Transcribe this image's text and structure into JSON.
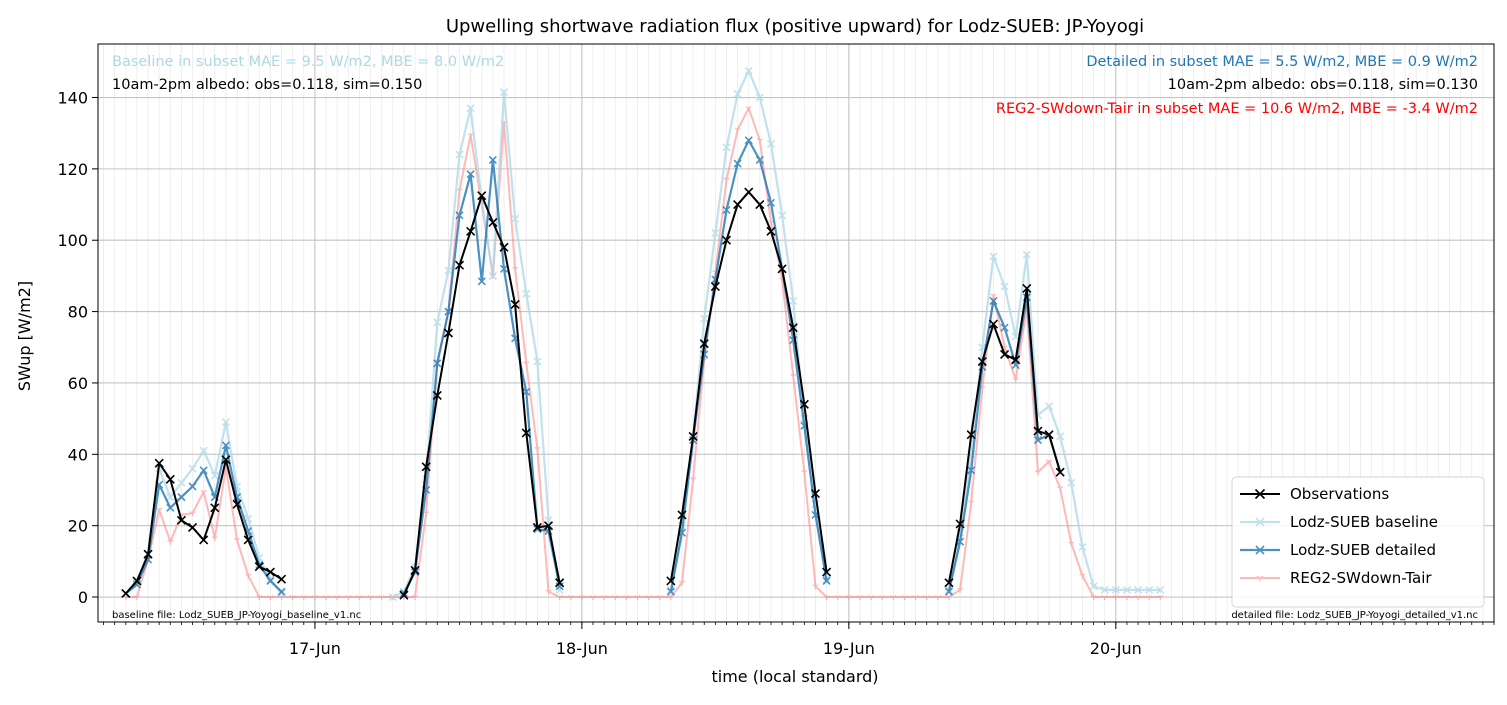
{
  "chart_data": {
    "type": "line",
    "title": "Upwelling shortwave radiation flux (positive upward) for Lodz-SUEB: JP-Yoyogi",
    "xlabel": "time (local standard)",
    "ylabel": "SWup [W/m2]",
    "ylim": [
      -7,
      155
    ],
    "xlim_hours": [
      -19.5,
      106
    ],
    "x_unit": "hours relative to 17-Jun 00:00 (local standard)",
    "x_ticks": [
      {
        "hour": 0,
        "label": "17-Jun"
      },
      {
        "hour": 24,
        "label": "18-Jun"
      },
      {
        "hour": 48,
        "label": "19-Jun"
      },
      {
        "hour": 72,
        "label": "20-Jun"
      }
    ],
    "y_ticks": [
      0,
      20,
      40,
      60,
      80,
      100,
      120,
      140
    ],
    "grid": true,
    "legend_position": "bottom-right",
    "annotations": {
      "baseline_metrics": "Baseline in subset MAE = 9.5 W/m2, MBE = 8.0 W/m2",
      "baseline_albedo": "10am-2pm albedo: obs=0.118, sim=0.150",
      "detailed_metrics": "Detailed in subset MAE = 5.5 W/m2, MBE = 0.9 W/m2",
      "detailed_albedo": "10am-2pm albedo: obs=0.118, sim=0.130",
      "reg2_metrics": "REG2-SWdown-Tair in subset MAE = 10.6 W/m2, MBE = -3.4 W/m2",
      "baseline_file": "baseline file: Lodz_SUEB_JP-Yoyogi_baseline_v1.nc",
      "detailed_file": "detailed file: Lodz_SUEB_JP-Yoyogi_detailed_v1.nc"
    },
    "series": [
      {
        "name": "Observations",
        "color": "#000000",
        "marker": "x",
        "points": [
          [
            -17,
            1
          ],
          [
            -16,
            4.5
          ],
          [
            -15,
            12
          ],
          [
            -14,
            37.5
          ],
          [
            -13,
            33
          ],
          [
            -12,
            21.5
          ],
          [
            -11,
            19.5
          ],
          [
            -10,
            16
          ],
          [
            -9,
            25
          ],
          [
            -8,
            38.5
          ],
          [
            -7,
            26
          ],
          [
            -6,
            16
          ],
          [
            -5,
            8.5
          ],
          [
            -4,
            7
          ],
          [
            -3,
            5
          ],
          [
            8,
            0.5
          ],
          [
            9,
            7.5
          ],
          [
            10,
            36.5
          ],
          [
            11,
            56.5
          ],
          [
            12,
            74
          ],
          [
            13,
            93
          ],
          [
            14,
            102.5
          ],
          [
            15,
            112.5
          ],
          [
            16,
            105
          ],
          [
            17,
            98
          ],
          [
            18,
            82
          ],
          [
            19,
            46
          ],
          [
            20,
            19.5
          ],
          [
            21,
            20
          ],
          [
            22,
            4
          ],
          [
            32,
            4.5
          ],
          [
            33,
            23
          ],
          [
            34,
            45
          ],
          [
            35,
            71
          ],
          [
            36,
            87
          ],
          [
            37,
            100
          ],
          [
            38,
            110
          ],
          [
            39,
            113.5
          ],
          [
            40,
            110
          ],
          [
            41,
            102.5
          ],
          [
            42,
            92
          ],
          [
            43,
            75.5
          ],
          [
            44,
            54
          ],
          [
            45,
            29
          ],
          [
            46,
            7
          ],
          [
            57,
            4
          ],
          [
            58,
            20.5
          ],
          [
            59,
            45.5
          ],
          [
            60,
            66
          ],
          [
            61,
            76.5
          ],
          [
            62,
            68
          ],
          [
            63,
            66.5
          ],
          [
            64,
            86.5
          ],
          [
            65,
            46.5
          ],
          [
            66,
            45.5
          ],
          [
            67,
            35
          ]
        ]
      },
      {
        "name": "Lodz-SUEB baseline",
        "color": "#add8e6",
        "marker": "x",
        "points": [
          [
            -17,
            1
          ],
          [
            -16,
            4
          ],
          [
            -15,
            12
          ],
          [
            -14,
            36
          ],
          [
            -13,
            28
          ],
          [
            -12,
            32
          ],
          [
            -11,
            36
          ],
          [
            -10,
            41
          ],
          [
            -9,
            34
          ],
          [
            -8,
            49
          ],
          [
            -7,
            31
          ],
          [
            -6,
            22
          ],
          [
            -5,
            11
          ],
          [
            -4,
            5
          ],
          [
            -3,
            1
          ],
          [
            7,
            0
          ],
          [
            8,
            1.5
          ],
          [
            9,
            8.5
          ],
          [
            10,
            33
          ],
          [
            11,
            77
          ],
          [
            12,
            91.5
          ],
          [
            13,
            124
          ],
          [
            14,
            137
          ],
          [
            15,
            111
          ],
          [
            16,
            90
          ],
          [
            17,
            141.5
          ],
          [
            18,
            106
          ],
          [
            19,
            85
          ],
          [
            20,
            66
          ],
          [
            21,
            21.5
          ],
          [
            22,
            2
          ],
          [
            32,
            2
          ],
          [
            33,
            20
          ],
          [
            34,
            45
          ],
          [
            35,
            78
          ],
          [
            36,
            102
          ],
          [
            37,
            126
          ],
          [
            38,
            141
          ],
          [
            39,
            147.5
          ],
          [
            40,
            140
          ],
          [
            41,
            127
          ],
          [
            42,
            107
          ],
          [
            43,
            83
          ],
          [
            44,
            50
          ],
          [
            45,
            26
          ],
          [
            46,
            5
          ],
          [
            57,
            2
          ],
          [
            58,
            18
          ],
          [
            59,
            40
          ],
          [
            60,
            70
          ],
          [
            61,
            95.5
          ],
          [
            62,
            87
          ],
          [
            63,
            73
          ],
          [
            64,
            96
          ],
          [
            65,
            51
          ],
          [
            66,
            53.5
          ],
          [
            67,
            45
          ],
          [
            68,
            32
          ],
          [
            69,
            14
          ],
          [
            70,
            3
          ],
          [
            71,
            2
          ],
          [
            72,
            2
          ],
          [
            73,
            2
          ],
          [
            74,
            2
          ],
          [
            75,
            2
          ],
          [
            76,
            2
          ]
        ]
      },
      {
        "name": "Lodz-SUEB detailed",
        "color": "#1f77b4",
        "marker": "x",
        "points": [
          [
            -17,
            1
          ],
          [
            -16,
            3.5
          ],
          [
            -15,
            10.5
          ],
          [
            -14,
            31.5
          ],
          [
            -13,
            25
          ],
          [
            -12,
            28
          ],
          [
            -11,
            31
          ],
          [
            -10,
            35.5
          ],
          [
            -9,
            28
          ],
          [
            -8,
            42.5
          ],
          [
            -7,
            28
          ],
          [
            -6,
            18.5
          ],
          [
            -5,
            9
          ],
          [
            -4,
            4.5
          ],
          [
            -3,
            1.5
          ],
          [
            8,
            1
          ],
          [
            9,
            7
          ],
          [
            10,
            30
          ],
          [
            11,
            65.5
          ],
          [
            12,
            80
          ],
          [
            13,
            107
          ],
          [
            14,
            118.5
          ],
          [
            15,
            88.5
          ],
          [
            16,
            122.5
          ],
          [
            17,
            92
          ],
          [
            18,
            72.5
          ],
          [
            19,
            57.5
          ],
          [
            20,
            19
          ],
          [
            21,
            18.5
          ],
          [
            22,
            3
          ],
          [
            32,
            1.5
          ],
          [
            33,
            18
          ],
          [
            34,
            44
          ],
          [
            35,
            68
          ],
          [
            36,
            89
          ],
          [
            37,
            108.5
          ],
          [
            38,
            121.5
          ],
          [
            39,
            128
          ],
          [
            40,
            122.5
          ],
          [
            41,
            110.5
          ],
          [
            42,
            92
          ],
          [
            43,
            72
          ],
          [
            44,
            48
          ],
          [
            45,
            23
          ],
          [
            46,
            4.5
          ],
          [
            57,
            1.5
          ],
          [
            58,
            15.5
          ],
          [
            59,
            35.5
          ],
          [
            60,
            64.5
          ],
          [
            61,
            83
          ],
          [
            62,
            75.5
          ],
          [
            63,
            65
          ],
          [
            64,
            84
          ],
          [
            65,
            44
          ],
          [
            66,
            45.5
          ],
          [
            67,
            35
          ]
        ]
      },
      {
        "name": "REG2-SWdown-Tair",
        "color": "#ff8080",
        "marker": "tri",
        "points": [
          [
            -17,
            0
          ],
          [
            -16,
            0
          ],
          [
            -15,
            10.5
          ],
          [
            -14,
            24.5
          ],
          [
            -13,
            15.5
          ],
          [
            -12,
            23
          ],
          [
            -11,
            23.5
          ],
          [
            -10,
            29.5
          ],
          [
            -9,
            16.5
          ],
          [
            -8,
            36.5
          ],
          [
            -7,
            16
          ],
          [
            -6,
            6
          ],
          [
            -5,
            0
          ],
          [
            -4,
            0
          ],
          [
            -3,
            0
          ],
          [
            -2,
            0
          ],
          [
            -1,
            0
          ],
          [
            0,
            0
          ],
          [
            1,
            0
          ],
          [
            2,
            0
          ],
          [
            3,
            0
          ],
          [
            4,
            0
          ],
          [
            5,
            0
          ],
          [
            6,
            0
          ],
          [
            7,
            0
          ],
          [
            8,
            0
          ],
          [
            9,
            0
          ],
          [
            10,
            23.5
          ],
          [
            11,
            66
          ],
          [
            12,
            80
          ],
          [
            13,
            114
          ],
          [
            14,
            129.5
          ],
          [
            15,
            110
          ],
          [
            16,
            90
          ],
          [
            17,
            133
          ],
          [
            18,
            92
          ],
          [
            19,
            65.5
          ],
          [
            20,
            41.5
          ],
          [
            21,
            1.5
          ],
          [
            22,
            0
          ],
          [
            23,
            0
          ],
          [
            24,
            0
          ],
          [
            25,
            0
          ],
          [
            26,
            0
          ],
          [
            27,
            0
          ],
          [
            28,
            0
          ],
          [
            29,
            0
          ],
          [
            30,
            0
          ],
          [
            31,
            0
          ],
          [
            32,
            0
          ],
          [
            33,
            4
          ],
          [
            34,
            33
          ],
          [
            35,
            66.5
          ],
          [
            36,
            91
          ],
          [
            37,
            117
          ],
          [
            38,
            131
          ],
          [
            39,
            137
          ],
          [
            40,
            128
          ],
          [
            41,
            105
          ],
          [
            42,
            89
          ],
          [
            43,
            62
          ],
          [
            44,
            35
          ],
          [
            45,
            3
          ],
          [
            46,
            0
          ],
          [
            47,
            0
          ],
          [
            48,
            0
          ],
          [
            49,
            0
          ],
          [
            50,
            0
          ],
          [
            51,
            0
          ],
          [
            52,
            0
          ],
          [
            53,
            0
          ],
          [
            54,
            0
          ],
          [
            55,
            0
          ],
          [
            56,
            0
          ],
          [
            57,
            0
          ],
          [
            58,
            2
          ],
          [
            59,
            26.5
          ],
          [
            60,
            58.5
          ],
          [
            61,
            84.5
          ],
          [
            62,
            70
          ],
          [
            63,
            61
          ],
          [
            64,
            81
          ],
          [
            65,
            35
          ],
          [
            66,
            38
          ],
          [
            67,
            30.5
          ],
          [
            68,
            15
          ],
          [
            69,
            6
          ],
          [
            70,
            0
          ],
          [
            71,
            0
          ],
          [
            72,
            0
          ],
          [
            73,
            0
          ],
          [
            74,
            0
          ],
          [
            75,
            0
          ],
          [
            76,
            0
          ]
        ]
      }
    ]
  }
}
